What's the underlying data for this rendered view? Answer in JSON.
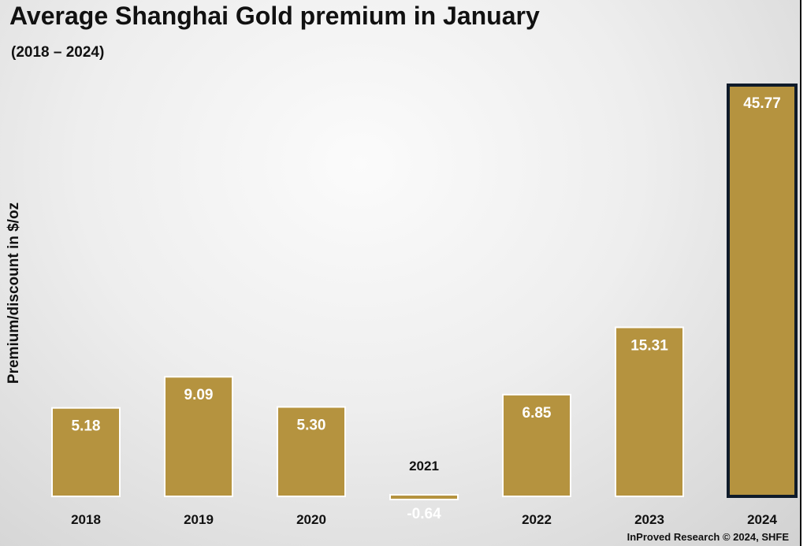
{
  "chart_data": {
    "type": "bar",
    "title": "Average Shanghai Gold premium in January",
    "subtitle": "(2018 – 2024)",
    "ylabel": "Premium/discount in $/oz",
    "xlabel": "",
    "categories": [
      "2018",
      "2019",
      "2020",
      "2021",
      "2022",
      "2023",
      "2024"
    ],
    "values": [
      5.18,
      9.09,
      5.3,
      -0.64,
      6.85,
      15.31,
      45.77
    ],
    "value_labels": [
      "5.18",
      "9.09",
      "5.30",
      "-0.64",
      "6.85",
      "15.31",
      "45.77"
    ],
    "highlighted_category": "2024",
    "ylim": [
      -0.64,
      45.77
    ],
    "grid": false,
    "legend": "none",
    "bar_color": "#b5933f",
    "highlight_border_color": "#0f1b2a"
  },
  "source": "InProved Research © 2024, SHFE"
}
